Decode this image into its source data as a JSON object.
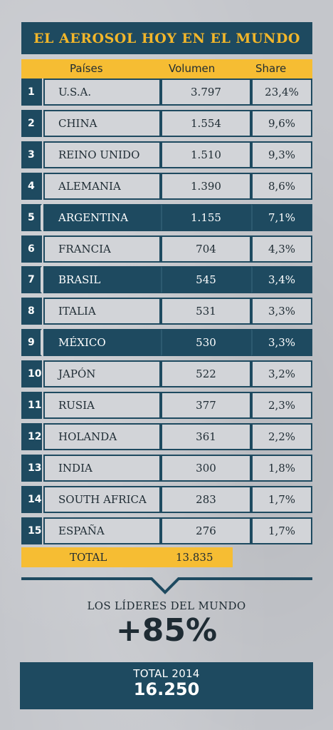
{
  "title": "EL AEROSOL HOY EN EL MUNDO",
  "headers": {
    "country": "Países",
    "volume": "Volumen",
    "share": "Share"
  },
  "rows": [
    {
      "rank": "1",
      "country": "U.S.A.",
      "volume": "3.797",
      "share": "23,4%",
      "style": "light"
    },
    {
      "rank": "2",
      "country": "CHINA",
      "volume": "1.554",
      "share": "9,6%",
      "style": "light"
    },
    {
      "rank": "3",
      "country": "REINO UNIDO",
      "volume": "1.510",
      "share": "9,3%",
      "style": "light"
    },
    {
      "rank": "4",
      "country": "ALEMANIA",
      "volume": "1.390",
      "share": "8,6%",
      "style": "light"
    },
    {
      "rank": "5",
      "country": "ARGENTINA",
      "volume": "1.155",
      "share": "7,1%",
      "style": "dark"
    },
    {
      "rank": "6",
      "country": "FRANCIA",
      "volume": "704",
      "share": "4,3%",
      "style": "light"
    },
    {
      "rank": "7",
      "country": "BRASIL",
      "volume": "545",
      "share": "3,4%",
      "style": "dark"
    },
    {
      "rank": "8",
      "country": "ITALIA",
      "volume": "531",
      "share": "3,3%",
      "style": "light"
    },
    {
      "rank": "9",
      "country": "MÉXICO",
      "volume": "530",
      "share": "3,3%",
      "style": "dark"
    },
    {
      "rank": "10",
      "country": "JAPÓN",
      "volume": "522",
      "share": "3,2%",
      "style": "light"
    },
    {
      "rank": "11",
      "country": "RUSIA",
      "volume": "377",
      "share": "2,3%",
      "style": "light"
    },
    {
      "rank": "12",
      "country": "HOLANDA",
      "volume": "361",
      "share": "2,2%",
      "style": "light"
    },
    {
      "rank": "13",
      "country": "INDIA",
      "volume": "300",
      "share": "1,8%",
      "style": "light"
    },
    {
      "rank": "14",
      "country": "SOUTH AFRICA",
      "volume": "283",
      "share": "1,7%",
      "style": "light"
    },
    {
      "rank": "15",
      "country": "ESPAÑA",
      "volume": "276",
      "share": "1,7%",
      "style": "light"
    }
  ],
  "total": {
    "label": "TOTAL",
    "value": "13.835"
  },
  "leaders": {
    "label": "LOS LÍDERES DEL MUNDO",
    "value": "+85%"
  },
  "total_year": {
    "label": "TOTAL 2014",
    "value": "16.250"
  },
  "colors": {
    "navy": "#1e4a60",
    "gold": "#f6bd33",
    "title_gold": "#f2b62a",
    "light_cell": "#d2d4d8"
  }
}
